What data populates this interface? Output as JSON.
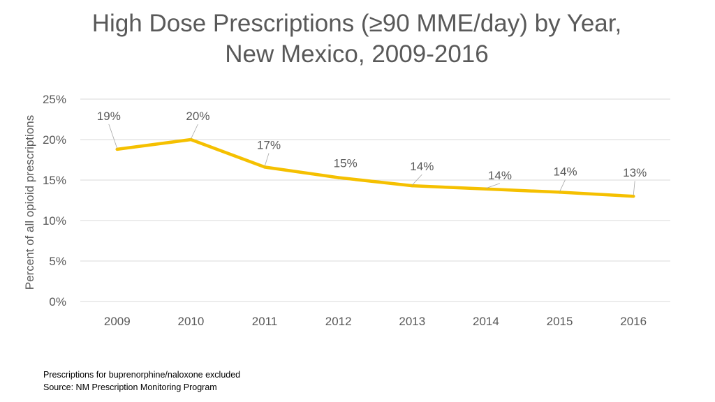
{
  "title_lines": [
    "High Dose Prescriptions (≥90 MME/day) by Year,",
    "New Mexico, 2009-2016"
  ],
  "footnotes": [
    "Prescriptions for buprenorphine/naloxone excluded",
    "Source: NM Prescription Monitoring Program"
  ],
  "colors": {
    "line": "#F5C000",
    "grid": "#D9D9D9",
    "text": "#595959",
    "leader": "#A6A6A6"
  },
  "chart_data": {
    "type": "line",
    "title": "High Dose Prescriptions (≥90 MME/day) by Year, New Mexico, 2009-2016",
    "xlabel": "",
    "ylabel": "Percent of all opioid prescriptions",
    "categories": [
      "2009",
      "2010",
      "2011",
      "2012",
      "2013",
      "2014",
      "2015",
      "2016"
    ],
    "series": [
      {
        "name": "High dose prescriptions",
        "values": [
          18.8,
          20.0,
          16.6,
          15.3,
          14.3,
          13.9,
          13.5,
          13.0
        ],
        "data_labels": [
          "19%",
          "20%",
          "17%",
          "15%",
          "14%",
          "14%",
          "14%",
          "13%"
        ]
      }
    ],
    "ylim": [
      0,
      25
    ],
    "yticks": [
      0,
      5,
      10,
      15,
      20,
      25
    ],
    "ytick_labels": [
      "0%",
      "5%",
      "10%",
      "15%",
      "20%",
      "25%"
    ],
    "grid": true,
    "legend": "none"
  }
}
